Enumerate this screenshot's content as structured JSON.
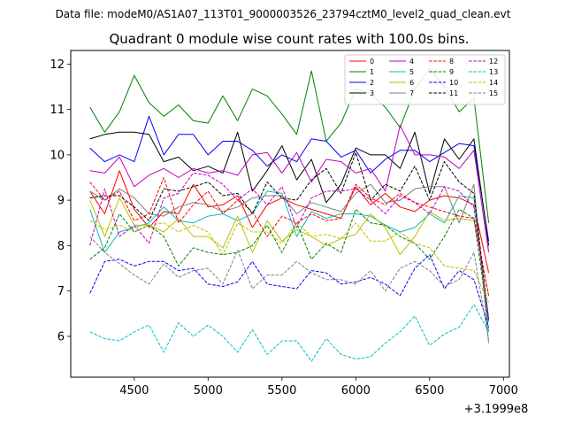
{
  "chart_data": {
    "type": "line",
    "suptitle": "Data file: modeM0/AS1A07_113T01_9000003526_23794cztM0_level2_quad_clean.evt",
    "title": "Quadrant 0 module wise count rates with 100.0s bins.",
    "xlabel": "",
    "ylabel": "",
    "x_offset_label": "+3.1999e8",
    "xlim": [
      4070,
      7040
    ],
    "ylim": [
      5.1,
      12.3
    ],
    "xticks": [
      4500,
      5000,
      5500,
      6000,
      6500,
      7000
    ],
    "yticks": [
      6,
      7,
      8,
      9,
      10,
      11,
      12
    ],
    "x": [
      4200,
      4300,
      4400,
      4500,
      4600,
      4700,
      4800,
      4900,
      5000,
      5100,
      5200,
      5300,
      5400,
      5500,
      5600,
      5700,
      5800,
      5900,
      6000,
      6100,
      6200,
      6300,
      6400,
      6500,
      6600,
      6700,
      6800,
      6900
    ],
    "legend_position": "top-right",
    "series": [
      {
        "name": "0",
        "color": "#ff0000",
        "style": "solid",
        "values": [
          9.2,
          8.7,
          9.65,
          8.8,
          8.4,
          8.75,
          8.7,
          9.35,
          8.85,
          8.9,
          9.1,
          8.4,
          8.9,
          9.05,
          8.9,
          8.8,
          8.7,
          8.6,
          9.3,
          8.9,
          9.15,
          8.85,
          8.75,
          9.0,
          9.1,
          9.05,
          8.9,
          7.4
        ]
      },
      {
        "name": "1",
        "color": "#008000",
        "style": "solid",
        "values": [
          11.05,
          10.5,
          10.95,
          11.75,
          11.15,
          10.85,
          11.1,
          10.75,
          10.7,
          11.3,
          10.75,
          11.45,
          11.3,
          10.9,
          10.45,
          11.85,
          10.3,
          10.7,
          11.45,
          11.35,
          11.05,
          10.6,
          11.45,
          11.9,
          11.5,
          10.95,
          11.25,
          8.5
        ]
      },
      {
        "name": "2",
        "color": "#0000ff",
        "style": "solid",
        "values": [
          10.15,
          9.85,
          10.0,
          9.85,
          10.85,
          10.0,
          10.45,
          10.45,
          10.0,
          10.3,
          10.3,
          10.1,
          9.75,
          10.0,
          9.85,
          10.35,
          10.3,
          9.95,
          10.1,
          9.6,
          9.9,
          10.1,
          10.1,
          9.85,
          10.05,
          10.25,
          10.2,
          8.1
        ]
      },
      {
        "name": "3",
        "color": "#000000",
        "style": "solid",
        "values": [
          10.35,
          10.45,
          10.5,
          10.5,
          10.45,
          9.85,
          9.95,
          9.65,
          9.75,
          9.6,
          10.5,
          9.2,
          9.65,
          10.2,
          9.45,
          9.9,
          8.95,
          9.35,
          10.15,
          10.0,
          10.0,
          9.7,
          10.5,
          9.15,
          10.35,
          9.9,
          10.35,
          8.0
        ]
      },
      {
        "name": "4",
        "color": "#bf00bf",
        "style": "solid",
        "values": [
          9.65,
          9.6,
          9.95,
          9.3,
          9.55,
          9.7,
          9.5,
          9.7,
          9.6,
          9.65,
          9.55,
          10.0,
          10.05,
          9.6,
          10.05,
          9.4,
          9.9,
          9.85,
          9.6,
          9.7,
          9.2,
          10.65,
          10.0,
          10.0,
          9.95,
          9.7,
          10.1,
          7.85
        ]
      },
      {
        "name": "5",
        "color": "#00bfbf",
        "style": "solid",
        "values": [
          8.8,
          7.85,
          8.3,
          8.4,
          8.5,
          8.85,
          8.55,
          8.5,
          8.65,
          8.7,
          8.55,
          8.7,
          9.2,
          9.15,
          8.2,
          8.75,
          8.6,
          8.7,
          8.7,
          8.65,
          8.45,
          8.3,
          8.4,
          8.7,
          8.5,
          9.1,
          9.05,
          6.1
        ]
      },
      {
        "name": "6",
        "color": "#bfbf00",
        "style": "solid",
        "values": [
          9.0,
          8.2,
          9.05,
          8.45,
          8.45,
          8.3,
          8.6,
          8.2,
          8.2,
          7.95,
          8.65,
          7.85,
          8.55,
          8.1,
          8.35,
          8.2,
          8.0,
          8.15,
          8.25,
          8.7,
          8.4,
          7.8,
          8.2,
          8.75,
          8.55,
          8.6,
          8.55,
          6.9
        ]
      },
      {
        "name": "7",
        "color": "#808080",
        "style": "solid",
        "values": [
          9.2,
          9.0,
          9.25,
          9.05,
          8.7,
          8.65,
          8.85,
          8.95,
          8.9,
          8.75,
          8.85,
          9.05,
          9.1,
          9.1,
          8.7,
          8.95,
          8.85,
          8.75,
          9.15,
          9.35,
          8.95,
          9.0,
          9.25,
          9.3,
          9.3,
          8.5,
          9.35,
          5.85
        ]
      },
      {
        "name": "8",
        "color": "#ff0000",
        "style": "dashed",
        "values": [
          9.4,
          9.0,
          9.2,
          8.55,
          8.7,
          9.5,
          8.5,
          8.9,
          9.2,
          8.7,
          9.0,
          8.75,
          8.2,
          8.65,
          8.5,
          8.7,
          8.55,
          8.6,
          9.35,
          9.05,
          8.9,
          9.15,
          8.95,
          8.85,
          8.75,
          8.65,
          8.6,
          6.9
        ]
      },
      {
        "name": "9",
        "color": "#008000",
        "style": "dashed",
        "values": [
          7.7,
          7.95,
          8.7,
          8.3,
          8.45,
          8.2,
          7.55,
          7.95,
          7.85,
          7.8,
          7.85,
          8.0,
          8.45,
          7.85,
          8.5,
          7.7,
          8.05,
          7.85,
          8.8,
          8.5,
          8.45,
          8.2,
          8.05,
          7.7,
          8.2,
          8.8,
          8.6,
          6.3
        ]
      },
      {
        "name": "10",
        "color": "#0000ff",
        "style": "dashed",
        "values": [
          6.95,
          7.65,
          7.7,
          7.55,
          7.65,
          7.65,
          7.45,
          7.5,
          7.15,
          7.1,
          7.2,
          7.65,
          7.15,
          7.1,
          7.05,
          7.45,
          7.4,
          7.15,
          7.2,
          7.3,
          7.15,
          6.9,
          7.5,
          7.8,
          7.05,
          7.45,
          7.25,
          6.2
        ]
      },
      {
        "name": "11",
        "color": "#000000",
        "style": "dashed",
        "values": [
          9.05,
          9.1,
          9.1,
          8.85,
          8.55,
          9.25,
          9.2,
          9.3,
          9.4,
          9.1,
          9.15,
          8.7,
          9.4,
          9.05,
          9.0,
          9.45,
          9.7,
          9.15,
          10.05,
          9.0,
          9.35,
          9.2,
          9.75,
          9.0,
          9.85,
          9.4,
          9.15,
          6.35
        ]
      },
      {
        "name": "12",
        "color": "#bf00bf",
        "style": "dashed",
        "values": [
          8.0,
          9.25,
          8.2,
          8.45,
          8.05,
          9.05,
          9.15,
          9.6,
          9.55,
          9.35,
          9.0,
          9.25,
          8.9,
          9.3,
          8.4,
          9.05,
          9.2,
          9.2,
          9.25,
          9.0,
          8.7,
          9.1,
          8.95,
          8.7,
          9.3,
          9.2,
          8.85,
          6.4
        ]
      },
      {
        "name": "13",
        "color": "#00bfbf",
        "style": "dashed",
        "values": [
          6.1,
          5.95,
          5.9,
          6.1,
          6.25,
          5.65,
          6.3,
          6.0,
          6.25,
          6.0,
          5.65,
          6.15,
          5.6,
          5.9,
          5.9,
          5.45,
          5.95,
          5.6,
          5.5,
          5.55,
          5.85,
          6.1,
          6.45,
          5.8,
          6.05,
          6.2,
          6.7,
          6.1
        ]
      },
      {
        "name": "14",
        "color": "#bfbf00",
        "style": "dashed",
        "values": [
          8.55,
          8.35,
          8.45,
          8.3,
          8.45,
          8.5,
          8.3,
          8.45,
          8.3,
          7.8,
          8.5,
          8.3,
          8.3,
          8.05,
          8.5,
          8.2,
          8.25,
          8.15,
          8.5,
          8.1,
          8.1,
          8.3,
          8.05,
          7.95,
          7.55,
          7.5,
          7.45,
          6.75
        ]
      },
      {
        "name": "15",
        "color": "#808080",
        "style": "dashed",
        "values": [
          8.2,
          7.85,
          7.6,
          7.35,
          7.15,
          7.6,
          7.3,
          7.45,
          7.5,
          7.15,
          7.9,
          7.05,
          7.35,
          7.35,
          7.65,
          7.4,
          7.25,
          7.25,
          7.15,
          7.45,
          7.0,
          7.5,
          7.65,
          7.45,
          7.1,
          7.25,
          7.85,
          5.9
        ]
      }
    ]
  }
}
